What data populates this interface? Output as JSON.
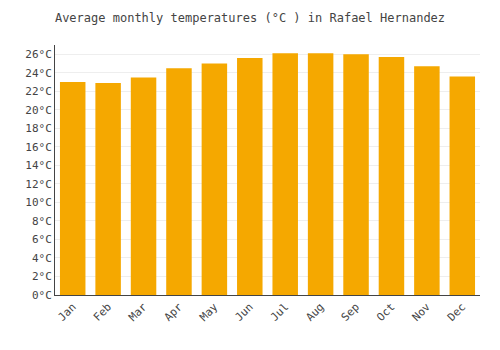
{
  "chart_data": {
    "type": "bar",
    "title": "Average monthly temperatures (°C ) in Rafael Hernandez",
    "categories": [
      "Jan",
      "Feb",
      "Mar",
      "Apr",
      "May",
      "Jun",
      "Jul",
      "Aug",
      "Sep",
      "Oct",
      "Nov",
      "Dec"
    ],
    "values": [
      23.0,
      22.9,
      23.5,
      24.5,
      25.0,
      25.6,
      26.1,
      26.1,
      26.0,
      25.7,
      24.7,
      23.6
    ],
    "color": "#F5A800",
    "ylim": [
      0,
      27
    ],
    "yticks": [
      {
        "value": 0,
        "label": "0°C"
      },
      {
        "value": 2,
        "label": "2°C"
      },
      {
        "value": 4,
        "label": "4°C"
      },
      {
        "value": 6,
        "label": "6°C"
      },
      {
        "value": 8,
        "label": "8°C"
      },
      {
        "value": 10,
        "label": "10°C"
      },
      {
        "value": 12,
        "label": "12°C"
      },
      {
        "value": 14,
        "label": "14°C"
      },
      {
        "value": 16,
        "label": "16°C"
      },
      {
        "value": 18,
        "label": "18°C"
      },
      {
        "value": 20,
        "label": "20°C"
      },
      {
        "value": 22,
        "label": "22°C"
      },
      {
        "value": 24,
        "label": "24°C"
      },
      {
        "value": 26,
        "label": "26°C"
      }
    ],
    "grid": true
  }
}
